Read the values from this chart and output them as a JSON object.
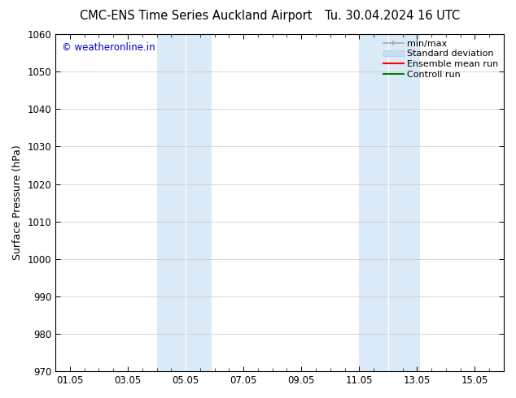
{
  "title_left": "CMC-ENS Time Series Auckland Airport",
  "title_right": "Tu. 30.04.2024 16 UTC",
  "ylabel": "Surface Pressure (hPa)",
  "ylim": [
    970,
    1060
  ],
  "yticks": [
    970,
    980,
    990,
    1000,
    1010,
    1020,
    1030,
    1040,
    1050,
    1060
  ],
  "xtick_labels": [
    "01.05",
    "03.05",
    "05.05",
    "07.05",
    "09.05",
    "11.05",
    "13.05",
    "15.05"
  ],
  "xtick_positions": [
    1,
    3,
    5,
    7,
    9,
    11,
    13,
    15
  ],
  "xlim": [
    0.5,
    16.0
  ],
  "band1_x1": 4.0,
  "band1_mid": 5.0,
  "band1_x2": 5.9,
  "band2_x1": 11.0,
  "band2_mid": 12.0,
  "band2_x2": 13.1,
  "band_color": "#daeaf6",
  "band_divider_color": "#ffffff",
  "copyright_text": "© weatheronline.in",
  "copyright_color": "#0000cc",
  "background_color": "#ffffff",
  "grid_color": "#c8c8c8",
  "title_fontsize": 10.5,
  "axis_label_fontsize": 9,
  "tick_fontsize": 8.5,
  "legend_fontsize": 8,
  "minmax_color": "#aaaaaa",
  "std_dev_color": "#c8ddf0",
  "std_dev_edge": "#b0cce0",
  "ensemble_color": "#ff0000",
  "control_color": "#008000"
}
